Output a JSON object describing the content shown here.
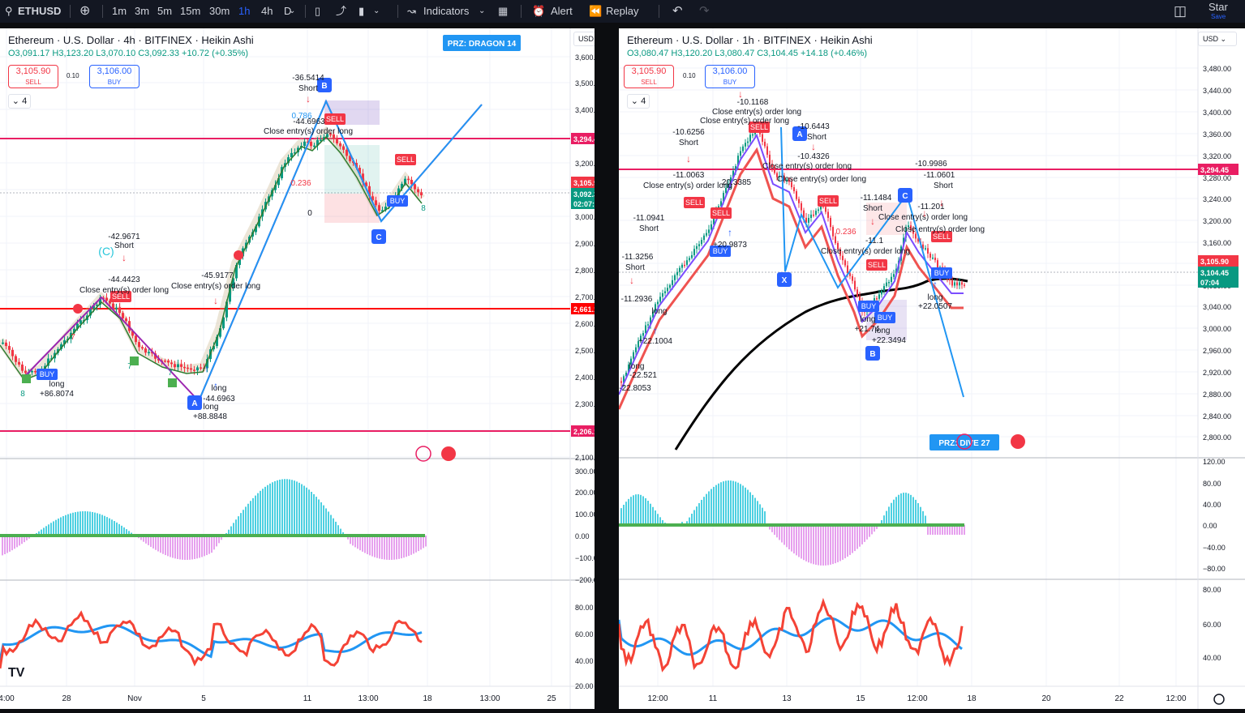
{
  "toolbar": {
    "symbol": "ETHUSD",
    "intervals": [
      "1m",
      "3m",
      "5m",
      "15m",
      "30m",
      "1h",
      "4h",
      "D"
    ],
    "active_interval": "1h",
    "indicators": "Indicators",
    "alert": "Alert",
    "replay": "Replay",
    "star": "Star",
    "save": "Save"
  },
  "left": {
    "legend": "Ethereum · U.S. Dollar · 4h · BITFINEX · Heikin Ashi",
    "ohlc": "O3,091.17 H3,123.20 L3,070.10 C3,092.33 +10.72 (+0.35%)",
    "sell_price": "3,105.90",
    "sell_label": "SELL",
    "spread": "0.10",
    "buy_price": "3,106.00",
    "buy_label": "BUY",
    "indicator_count": "4",
    "currency": "USD",
    "price_ticks": [
      "3,600.00",
      "3,500.00",
      "3,400.00",
      "3,300.00",
      "3,200.00",
      "3,100.00",
      "3,000.00",
      "2,900.00",
      "2,800.00",
      "2,700.00",
      "2,600.00",
      "2,500.00",
      "2,400.00",
      "2,300.00",
      "2,200.00",
      "2,100.00"
    ],
    "osc_ticks": [
      "300.00",
      "200.00",
      "100.00",
      "0.00",
      "−100.00",
      "−200.00"
    ],
    "rsi_ticks": [
      "80.00",
      "60.00",
      "40.00",
      "20.00"
    ],
    "time_ticks": [
      "4:00",
      "28",
      "Nov",
      "5",
      "11",
      "13:00",
      "18",
      "13:00",
      "25"
    ],
    "price_tags": {
      "h1": "3,294.45",
      "h2": "2,661.15",
      "h3": "2,206.11",
      "ask": "3,105.90",
      "last": "3,092.33",
      "countdown": "02:07:03"
    },
    "prz": "PRZ: DRAGON 14",
    "annotations": {
      "a1": "-36.5414",
      "a2": "Short",
      "a3": "-44.6963",
      "a4": "Close entry(s) order long",
      "a5": "0.786",
      "a6": "0.236",
      "a7": "0",
      "a8": "-42.9671",
      "a9": "Short",
      "a10": "(C)",
      "a11": "-44.4423",
      "a12": "Close entry(s) order long",
      "a13": "-45.9177",
      "a14": "Close entry(s) order long",
      "a15": "long",
      "a16": "+86.8074",
      "a17": "long",
      "a18": "-44.6963",
      "a19": "long",
      "a20": "+88.8848",
      "a21": "8",
      "a22": "7",
      "a23": "7",
      "a24": "7",
      "a25": "8"
    },
    "pattern_points": [
      "B",
      "C",
      "A"
    ],
    "signals": {
      "buy": "BUY",
      "sell": "SELL"
    }
  },
  "right": {
    "legend": "Ethereum · U.S. Dollar · 1h · BITFINEX · Heikin Ashi",
    "ohlc": "O3,080.47 H3,120.20 L3,080.47 C3,104.45 +14.18 (+0.46%)",
    "sell_price": "3,105.90",
    "sell_label": "SELL",
    "spread": "0.10",
    "buy_price": "3,106.00",
    "buy_label": "BUY",
    "indicator_count": "4",
    "currency": "USD",
    "price_ticks": [
      "3,480.00",
      "3,440.00",
      "3,400.00",
      "3,360.00",
      "3,320.00",
      "3,280.00",
      "3,240.00",
      "3,200.00",
      "3,160.00",
      "3,120.00",
      "3,080.00",
      "3,040.00",
      "3,000.00",
      "2,960.00",
      "2,920.00",
      "2,880.00",
      "2,840.00",
      "2,800.00"
    ],
    "osc_ticks": [
      "120.00",
      "80.00",
      "40.00",
      "0.00",
      "−40.00",
      "−80.00"
    ],
    "rsi_ticks": [
      "80.00",
      "60.00",
      "40.00"
    ],
    "time_ticks": [
      "12:00",
      "11",
      "13",
      "15",
      "12:00",
      "18",
      "20",
      "22",
      "12:00"
    ],
    "price_tags": {
      "h1": "3,294.45",
      "ask": "3,105.90",
      "last": "3,104.45",
      "countdown": "07:04"
    },
    "prz": "PRZ: DIVE 27",
    "annotations": {
      "b1": "-10.1168",
      "b2": "Close entry(s) order long",
      "b3": "Close entry(s) order long",
      "b4": "-10.6256",
      "b5": "Short",
      "b6": "-11.0063",
      "b7": "Close entry(s) order long",
      "b8": "-10.6443",
      "b9": "Short",
      "b10": "-10.4326",
      "b11": "Close entry(s) order long",
      "b12": "Close entry(s) order long",
      "b13": "-10.9986",
      "b14": "-11.0601",
      "b15": "Short",
      "b16": "-11.1484",
      "b17": "Short",
      "b18": "-11.201",
      "b19": "Close entry(s) order long",
      "b20": "Close entry(s) order long",
      "b21": "Close entry(s) order long",
      "b22": "-11.0941",
      "b23": "Short",
      "b24": "+20.9873",
      "b25": "20.3385",
      "b26": "long",
      "b27": "+21.74",
      "b28": "long",
      "b29": "+22.3494",
      "b30": "long",
      "b31": "+22.0507",
      "b32": "-11.2936",
      "b33": "long",
      "b34": "+22.1004",
      "b35": "long",
      "b36": "-22.521",
      "b37": "-22.8053",
      "b38": "-11.3256",
      "b39": "Short",
      "b40": "0.236",
      "b41": "-11.1"
    },
    "pattern_points": [
      "A",
      "C",
      "X",
      "B"
    ],
    "signals": {
      "buy": "BUY",
      "sell": "SELL"
    }
  },
  "colors": {
    "up": "#089981",
    "down": "#f23645",
    "accent": "#2962ff",
    "magenta": "#e91e63",
    "red_line": "#ff0000",
    "blue_line": "#2196f3"
  }
}
